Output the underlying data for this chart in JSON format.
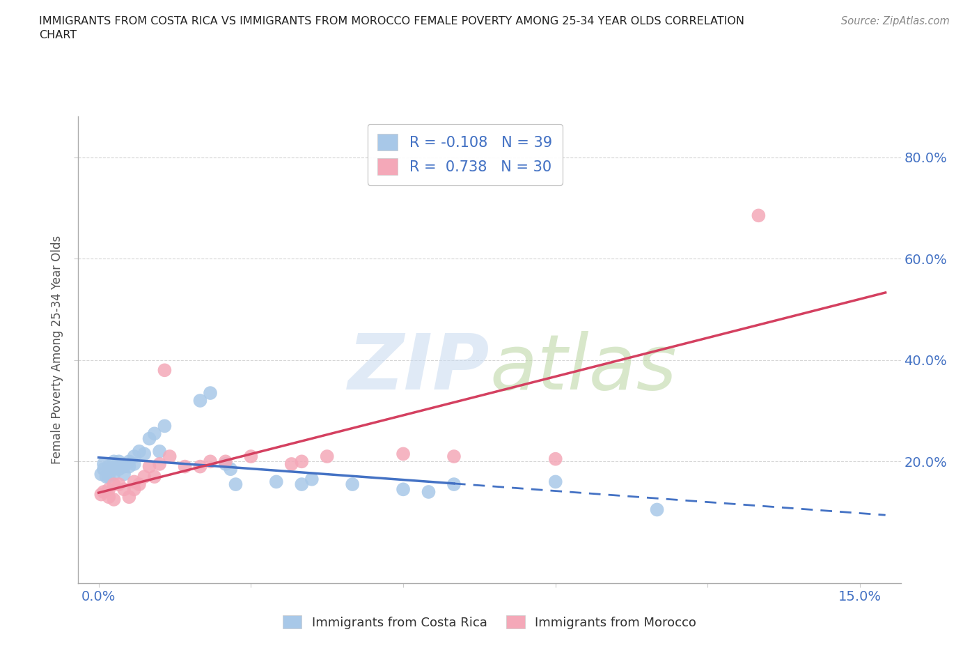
{
  "title": "IMMIGRANTS FROM COSTA RICA VS IMMIGRANTS FROM MOROCCO FEMALE POVERTY AMONG 25-34 YEAR OLDS CORRELATION\nCHART",
  "source": "Source: ZipAtlas.com",
  "ylabel": "Female Poverty Among 25-34 Year Olds",
  "x_tick_positions": [
    0.0,
    0.03,
    0.06,
    0.09,
    0.12,
    0.15
  ],
  "x_tick_labels": [
    "0.0%",
    "",
    "",
    "",
    "",
    "15.0%"
  ],
  "y_tick_positions": [
    0.2,
    0.4,
    0.6,
    0.8
  ],
  "y_tick_labels": [
    "20.0%",
    "40.0%",
    "60.0%",
    "80.0%"
  ],
  "xlim": [
    -0.004,
    0.158
  ],
  "ylim": [
    -0.04,
    0.88
  ],
  "costa_rica_color": "#a8c8e8",
  "morocco_color": "#f4a8b8",
  "costa_rica_line_color": "#4472c4",
  "morocco_line_color": "#d44060",
  "costa_rica_R": -0.108,
  "costa_rica_N": 39,
  "morocco_R": 0.738,
  "morocco_N": 30,
  "costa_rica_scatter_x": [
    0.0005,
    0.001,
    0.001,
    0.0015,
    0.002,
    0.002,
    0.002,
    0.003,
    0.003,
    0.003,
    0.004,
    0.004,
    0.004,
    0.005,
    0.005,
    0.006,
    0.006,
    0.007,
    0.007,
    0.008,
    0.009,
    0.01,
    0.011,
    0.012,
    0.013,
    0.02,
    0.022,
    0.025,
    0.026,
    0.027,
    0.035,
    0.04,
    0.042,
    0.05,
    0.06,
    0.065,
    0.07,
    0.09,
    0.11
  ],
  "costa_rica_scatter_y": [
    0.175,
    0.195,
    0.185,
    0.17,
    0.175,
    0.19,
    0.17,
    0.185,
    0.2,
    0.175,
    0.19,
    0.2,
    0.185,
    0.175,
    0.19,
    0.2,
    0.19,
    0.21,
    0.195,
    0.22,
    0.215,
    0.245,
    0.255,
    0.22,
    0.27,
    0.32,
    0.335,
    0.195,
    0.185,
    0.155,
    0.16,
    0.155,
    0.165,
    0.155,
    0.145,
    0.14,
    0.155,
    0.16,
    0.105
  ],
  "morocco_scatter_x": [
    0.0005,
    0.001,
    0.002,
    0.002,
    0.003,
    0.003,
    0.004,
    0.005,
    0.006,
    0.007,
    0.007,
    0.008,
    0.009,
    0.01,
    0.011,
    0.012,
    0.013,
    0.014,
    0.017,
    0.02,
    0.022,
    0.025,
    0.03,
    0.038,
    0.04,
    0.045,
    0.06,
    0.07,
    0.09,
    0.13
  ],
  "morocco_scatter_y": [
    0.135,
    0.14,
    0.13,
    0.145,
    0.125,
    0.155,
    0.155,
    0.145,
    0.13,
    0.145,
    0.16,
    0.155,
    0.17,
    0.19,
    0.17,
    0.195,
    0.38,
    0.21,
    0.19,
    0.19,
    0.2,
    0.2,
    0.21,
    0.195,
    0.2,
    0.21,
    0.215,
    0.21,
    0.205,
    0.685
  ],
  "background_color": "#ffffff",
  "grid_color": "#cccccc"
}
